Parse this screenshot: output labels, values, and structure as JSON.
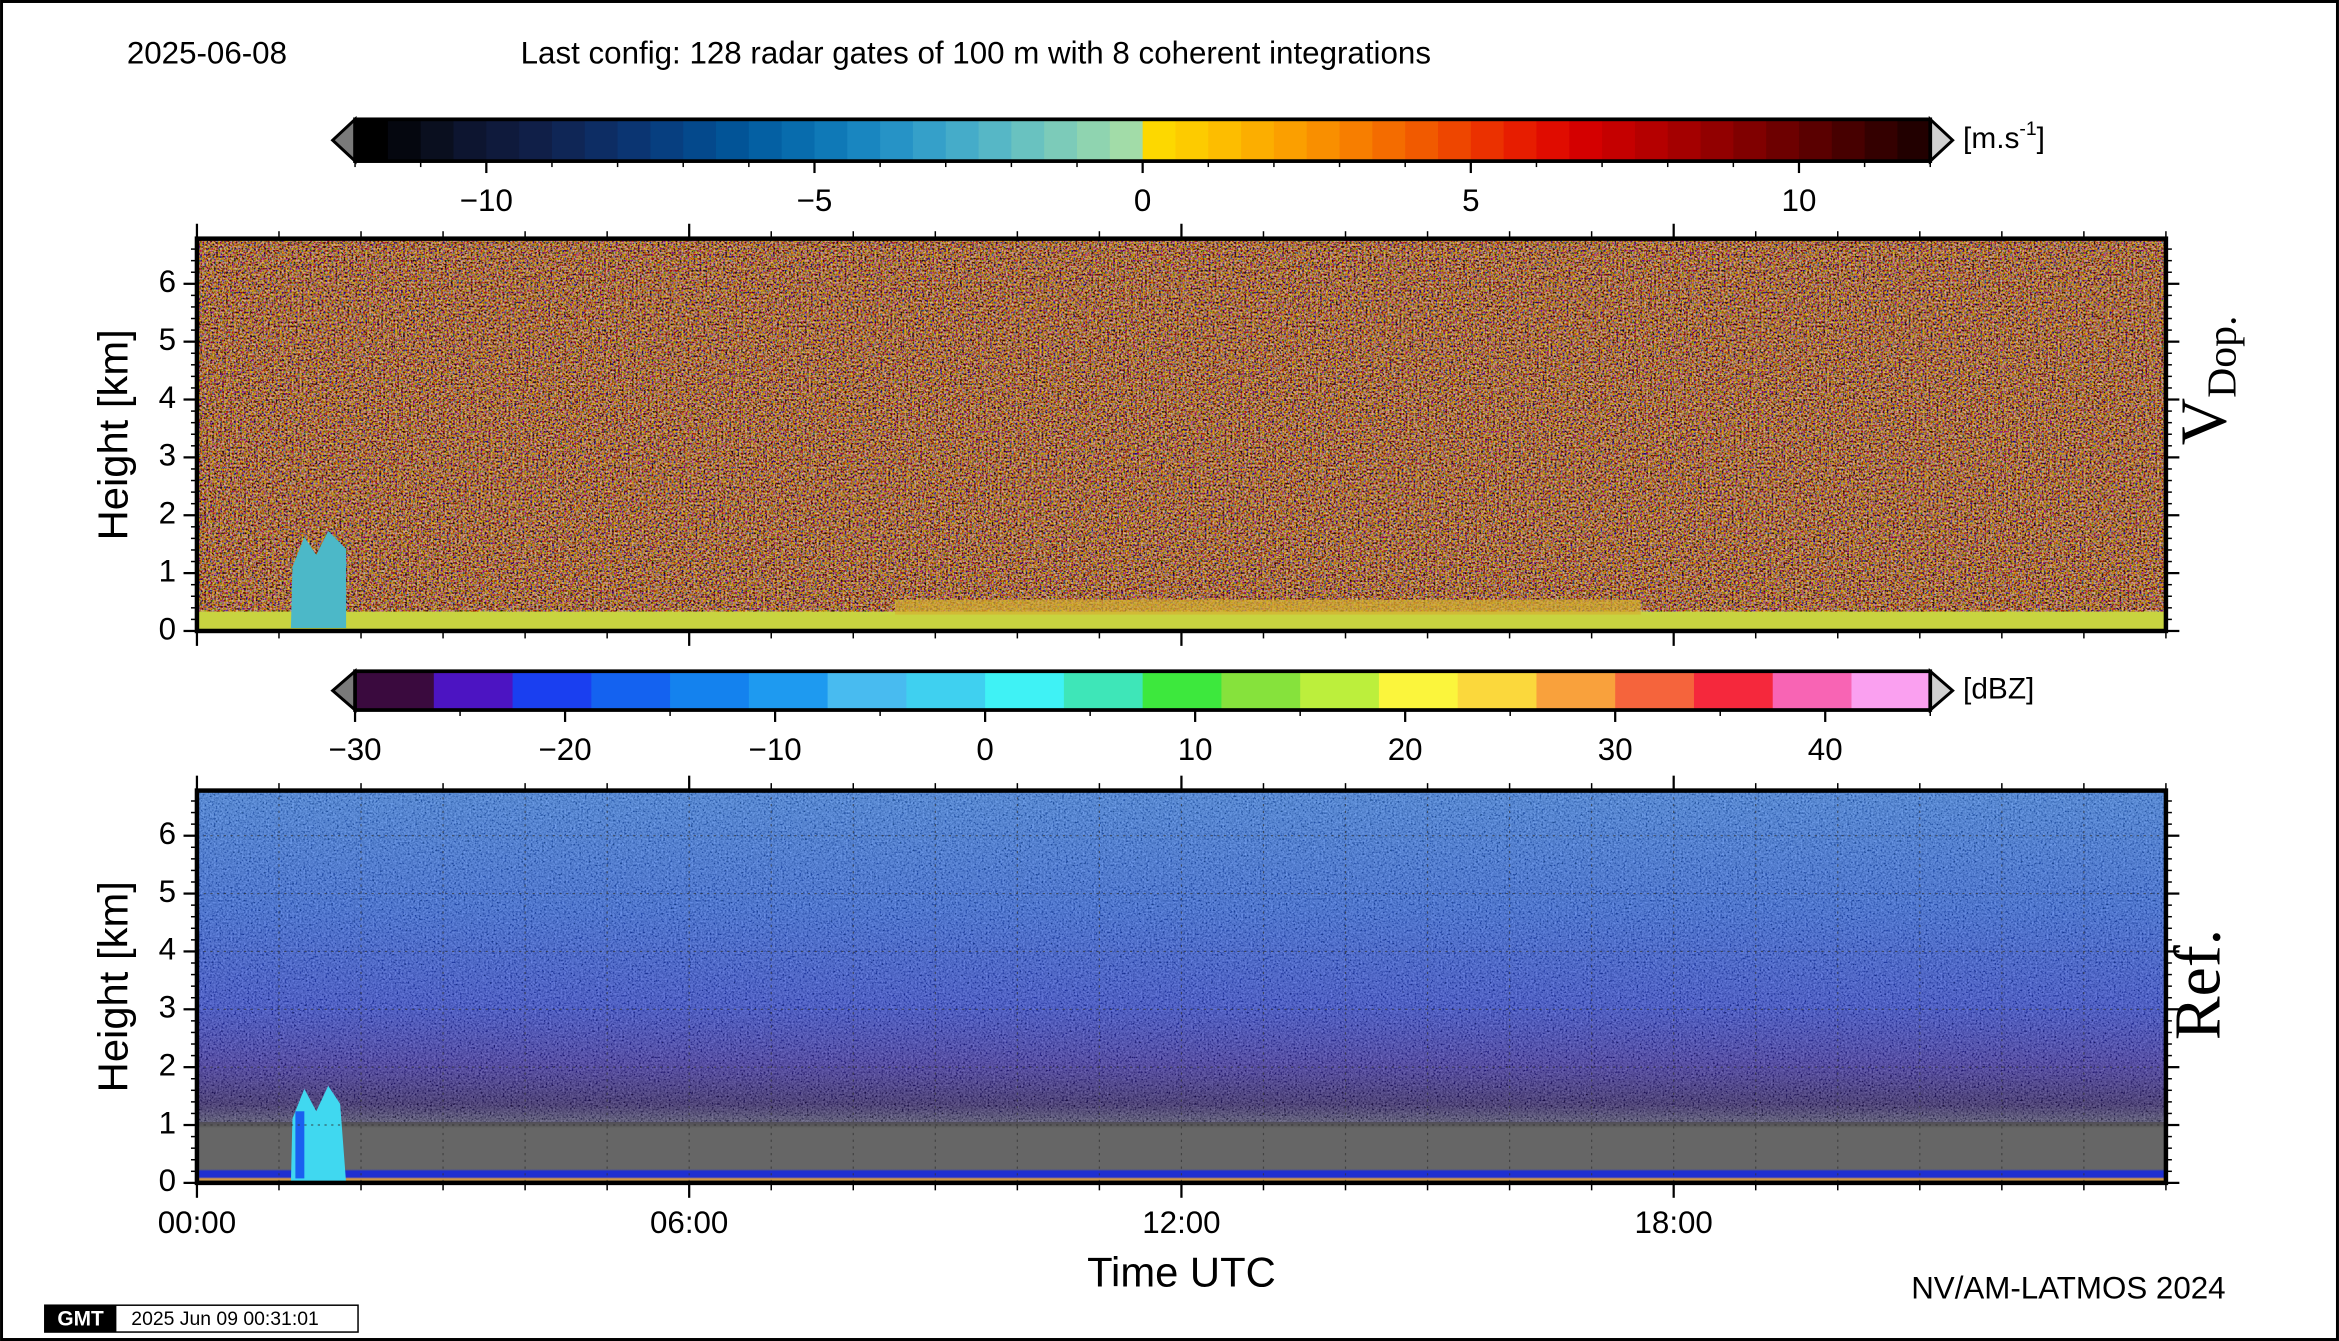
{
  "header": {
    "date": "2025-06-08",
    "config": "Last config: 128 radar gates of 100 m with 8 coherent integrations"
  },
  "chart_data": [
    {
      "type": "heatmap",
      "panel_label": "V",
      "panel_label_sub": "Dop.",
      "ylabel": "Height [km]",
      "xlim": [
        0,
        24
      ],
      "xticks": [
        0,
        6,
        12,
        18
      ],
      "xminor": 1,
      "ylim": [
        0,
        6.78
      ],
      "yticks": [
        0,
        1,
        2,
        3,
        4,
        5,
        6
      ],
      "yminor": 0.2,
      "grid": false,
      "colorbar": {
        "lim": [
          -12,
          12
        ],
        "minor": 1,
        "ticks": [
          {
            "value": -10,
            "label": "−10"
          },
          {
            "value": -5,
            "label": "−5"
          },
          0,
          5,
          10
        ],
        "unit": "[m.s",
        "unit_sup": "-1",
        "unit_end": "]",
        "extend_colors": [
          "#7a7a7a",
          "#d0d0d0"
        ],
        "colors": [
          "#000000",
          "#05070f",
          "#0a0f1f",
          "#0d1530",
          "#0f1a3c",
          "#101f48",
          "#0f2656",
          "#0d2d64",
          "#0b3572",
          "#073f80",
          "#04498c",
          "#025497",
          "#0460a3",
          "#086cad",
          "#0f79b7",
          "#1986c0",
          "#2693c6",
          "#35a0c9",
          "#45acc9",
          "#56b7c6",
          "#69c2c0",
          "#7ccbb9",
          "#8fd4b0",
          "#a2dca8",
          "#fdd800",
          "#fdcb00",
          "#fdbd00",
          "#fcae00",
          "#fb9f00",
          "#f98f00",
          "#f77e00",
          "#f46c00",
          "#f15a00",
          "#ee4600",
          "#eb3100",
          "#e71d00",
          "#e00c00",
          "#d40000",
          "#c50000",
          "#b50000",
          "#a40000",
          "#920000",
          "#800000",
          "#6d0000",
          "#5a0000",
          "#470000",
          "#340000",
          "#220000"
        ]
      }
    },
    {
      "type": "heatmap",
      "panel_label": "Ref.",
      "ylabel": "Height [km]",
      "xlabel": "Time UTC",
      "xlim": [
        0,
        24
      ],
      "xticks": [
        {
          "value": 0,
          "label": "00:00"
        },
        {
          "value": 6,
          "label": "06:00"
        },
        {
          "value": 12,
          "label": "12:00"
        },
        {
          "value": 18,
          "label": "18:00"
        }
      ],
      "xminor": 1,
      "ylim": [
        0,
        6.78
      ],
      "yticks": [
        0,
        1,
        2,
        3,
        4,
        5,
        6
      ],
      "yminor": 0.2,
      "grid": true,
      "colorbar": {
        "lim": [
          -30,
          45
        ],
        "minor": 5,
        "ticks": [
          {
            "value": -30,
            "label": "−30"
          },
          {
            "value": -20,
            "label": "−20"
          },
          {
            "value": -10,
            "label": "−10"
          },
          0,
          10,
          20,
          30,
          40
        ],
        "unit": "[dBZ]",
        "extend_colors": [
          "#7a7a7a",
          "#d0d0d0"
        ],
        "colors": [
          "#3a0a3e",
          "#4c14c2",
          "#1a3ff0",
          "#1462f0",
          "#1482ee",
          "#1e9af0",
          "#48bbf0",
          "#3fd0f0",
          "#3ff2f5",
          "#3ee6b8",
          "#3de83d",
          "#86e23c",
          "#bcef3c",
          "#fbf53c",
          "#fbd83c",
          "#f9a13c",
          "#f5643c",
          "#f5283c",
          "#f864b4",
          "#faa0f0"
        ]
      }
    }
  ],
  "footer": {
    "credit": "NV/AM-LATMOS 2024",
    "logo": "GMT",
    "stamp": "2025 Jun 09 00:31:01"
  }
}
